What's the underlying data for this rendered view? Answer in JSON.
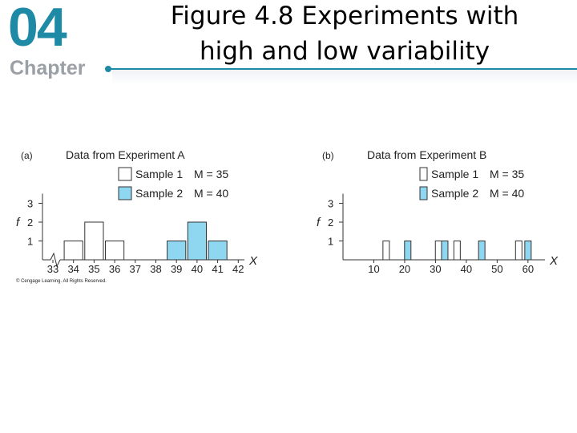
{
  "slide": {
    "chapter_number": "04",
    "chapter_label": "Chapter",
    "title": "Figure 4.8   Experiments with\nhigh and low variability",
    "copyright": "© Cengage Learning. All Rights Reserved."
  },
  "colors": {
    "accent": "#1f8aa6",
    "sample2_fill": "#8fd7f0",
    "sample1_fill": "#ffffff",
    "stroke": "#333333"
  },
  "chart_data": [
    {
      "type": "bar",
      "panel_label": "(a)",
      "title": "Data from Experiment A",
      "xlabel": "X",
      "ylabel": "f",
      "x_ticks": [
        33,
        34,
        35,
        36,
        37,
        38,
        39,
        40,
        41,
        42
      ],
      "y_ticks": [
        1,
        2,
        3
      ],
      "ylim": [
        0,
        3
      ],
      "axis_break": true,
      "legend": [
        {
          "label": "Sample 1",
          "stat": "M = 35"
        },
        {
          "label": "Sample 2",
          "stat": "M = 40"
        }
      ],
      "series": [
        {
          "name": "Sample 1",
          "x": [
            34,
            35,
            36
          ],
          "values": [
            1,
            2,
            1
          ]
        },
        {
          "name": "Sample 2",
          "x": [
            39,
            40,
            41
          ],
          "values": [
            1,
            2,
            1
          ]
        }
      ]
    },
    {
      "type": "bar",
      "panel_label": "(b)",
      "title": "Data from Experiment B",
      "xlabel": "X",
      "ylabel": "f",
      "x_ticks": [
        10,
        20,
        30,
        40,
        50,
        60
      ],
      "y_ticks": [
        1,
        2,
        3
      ],
      "ylim": [
        0,
        3
      ],
      "legend": [
        {
          "label": "Sample 1",
          "stat": "M = 35"
        },
        {
          "label": "Sample 2",
          "stat": "M = 40"
        }
      ],
      "series": [
        {
          "name": "Sample 1",
          "x": [
            14,
            31,
            37,
            57
          ],
          "values": [
            1,
            1,
            1,
            1
          ]
        },
        {
          "name": "Sample 2",
          "x": [
            21,
            33,
            45,
            60
          ],
          "values": [
            1,
            1,
            1,
            1
          ]
        }
      ]
    }
  ]
}
